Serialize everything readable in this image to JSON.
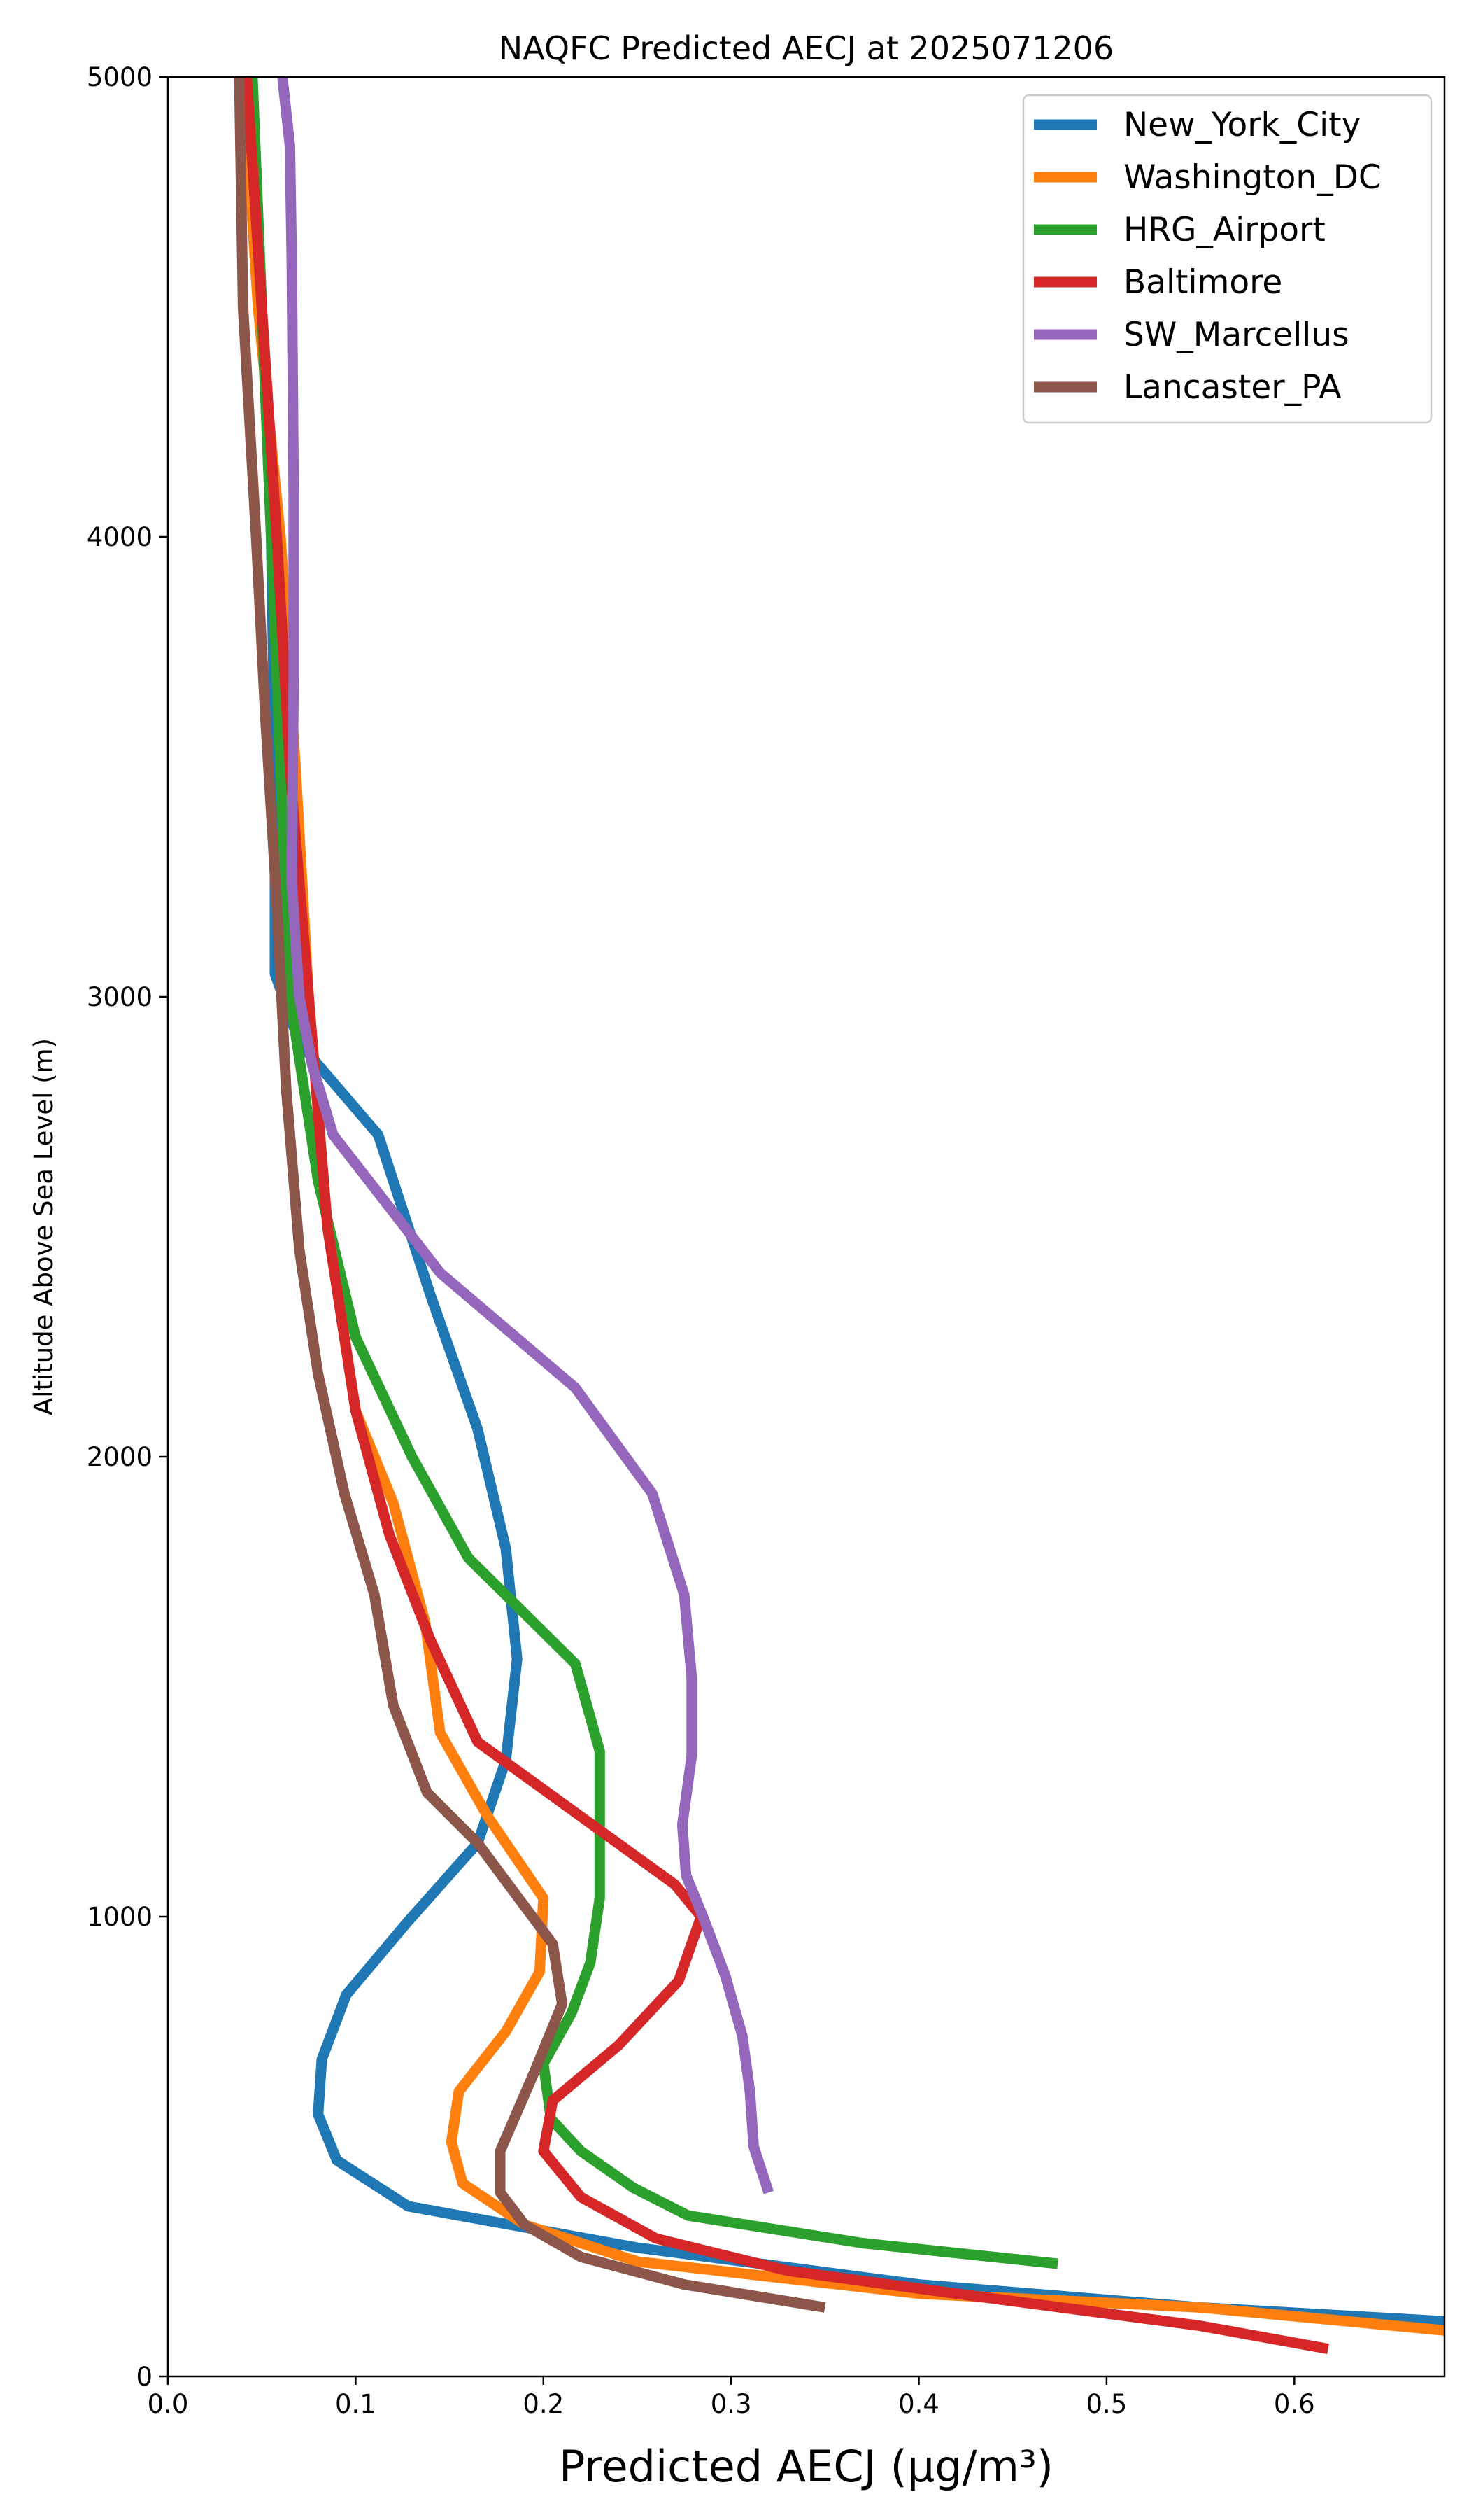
{
  "chart_data": {
    "type": "line",
    "title": "NAQFC Predicted AECJ at 2025071206",
    "xlabel": "Predicted AECJ (μg/m³)",
    "ylabel": "Altitude Above Sea Level (m)",
    "xlim": [
      0.0,
      0.68
    ],
    "ylim": [
      0,
      5000
    ],
    "xticks": [
      "0.0",
      "0.1",
      "0.2",
      "0.3",
      "0.4",
      "0.5",
      "0.6"
    ],
    "yticks": [
      "0",
      "1000",
      "2000",
      "3000",
      "4000",
      "5000"
    ],
    "grid": false,
    "legend_position": "top-right",
    "series": [
      {
        "name": "New_York_City",
        "color": "#1f77b4",
        "x": [
          0.68,
          0.55,
          0.4,
          0.25,
          0.128,
          0.09,
          0.08,
          0.082,
          0.095,
          0.128,
          0.165,
          0.18,
          0.186,
          0.18,
          0.165,
          0.14,
          0.112,
          0.07,
          0.057,
          0.057,
          0.055,
          0.045
        ],
        "y": [
          120,
          150,
          200,
          280,
          370,
          470,
          570,
          690,
          830,
          990,
          1160,
          1340,
          1560,
          1800,
          2060,
          2350,
          2700,
          2900,
          3050,
          3500,
          4000,
          5000
        ]
      },
      {
        "name": "Washington_DC",
        "color": "#ff7f0e",
        "x": [
          0.68,
          0.55,
          0.4,
          0.25,
          0.19,
          0.157,
          0.151,
          0.155,
          0.18,
          0.198,
          0.2,
          0.17,
          0.145,
          0.137,
          0.12,
          0.1,
          0.085,
          0.075,
          0.068,
          0.06,
          0.048,
          0.04
        ],
        "y": [
          100,
          150,
          180,
          250,
          330,
          420,
          510,
          620,
          750,
          880,
          1040,
          1220,
          1400,
          1640,
          1900,
          2100,
          2500,
          3000,
          3500,
          4000,
          4500,
          5000
        ]
      },
      {
        "name": "HRG_Airport",
        "color": "#2ca02c",
        "x": [
          0.474,
          0.37,
          0.277,
          0.248,
          0.22,
          0.204,
          0.2,
          0.215,
          0.225,
          0.23,
          0.23,
          0.217,
          0.16,
          0.13,
          0.1,
          0.08,
          0.065,
          0.06,
          0.055,
          0.05,
          0.045
        ],
        "y": [
          245,
          290,
          350,
          410,
          490,
          560,
          680,
          790,
          900,
          1040,
          1360,
          1550,
          1780,
          2000,
          2260,
          2600,
          3000,
          3500,
          4000,
          4500,
          5000
        ]
      },
      {
        "name": "Baltimore",
        "color": "#d62728",
        "x": [
          0.618,
          0.55,
          0.42,
          0.33,
          0.26,
          0.22,
          0.2,
          0.205,
          0.24,
          0.272,
          0.284,
          0.27,
          0.165,
          0.14,
          0.118,
          0.1,
          0.085,
          0.075,
          0.065,
          0.058,
          0.05,
          0.042
        ],
        "y": [
          60,
          110,
          180,
          230,
          300,
          390,
          490,
          600,
          720,
          860,
          1000,
          1070,
          1380,
          1600,
          1830,
          2100,
          2500,
          3000,
          3500,
          4000,
          4500,
          5000
        ]
      },
      {
        "name": "SW_Marcellus",
        "color": "#9467bd",
        "x": [
          0.32,
          0.312,
          0.31,
          0.306,
          0.297,
          0.285,
          0.276,
          0.274,
          0.279,
          0.279,
          0.275,
          0.258,
          0.217,
          0.145,
          0.088,
          0.077,
          0.07,
          0.066,
          0.067,
          0.067,
          0.066,
          0.065,
          0.061
        ],
        "y": [
          400,
          500,
          620,
          740,
          870,
          1000,
          1090,
          1200,
          1350,
          1520,
          1700,
          1920,
          2150,
          2400,
          2700,
          2850,
          3000,
          3250,
          3700,
          4100,
          4600,
          4850,
          5000
        ]
      },
      {
        "name": "Lancaster_PA",
        "color": "#8c564b",
        "x": [
          0.35,
          0.275,
          0.22,
          0.19,
          0.177,
          0.177,
          0.195,
          0.21,
          0.205,
          0.165,
          0.138,
          0.12,
          0.11,
          0.094,
          0.08,
          0.07,
          0.063,
          0.058,
          0.052,
          0.047,
          0.04,
          0.038
        ],
        "y": [
          150,
          200,
          260,
          330,
          400,
          490,
          660,
          810,
          940,
          1160,
          1270,
          1460,
          1700,
          1920,
          2180,
          2450,
          2800,
          3200,
          3600,
          4000,
          4500,
          5000
        ]
      }
    ]
  }
}
